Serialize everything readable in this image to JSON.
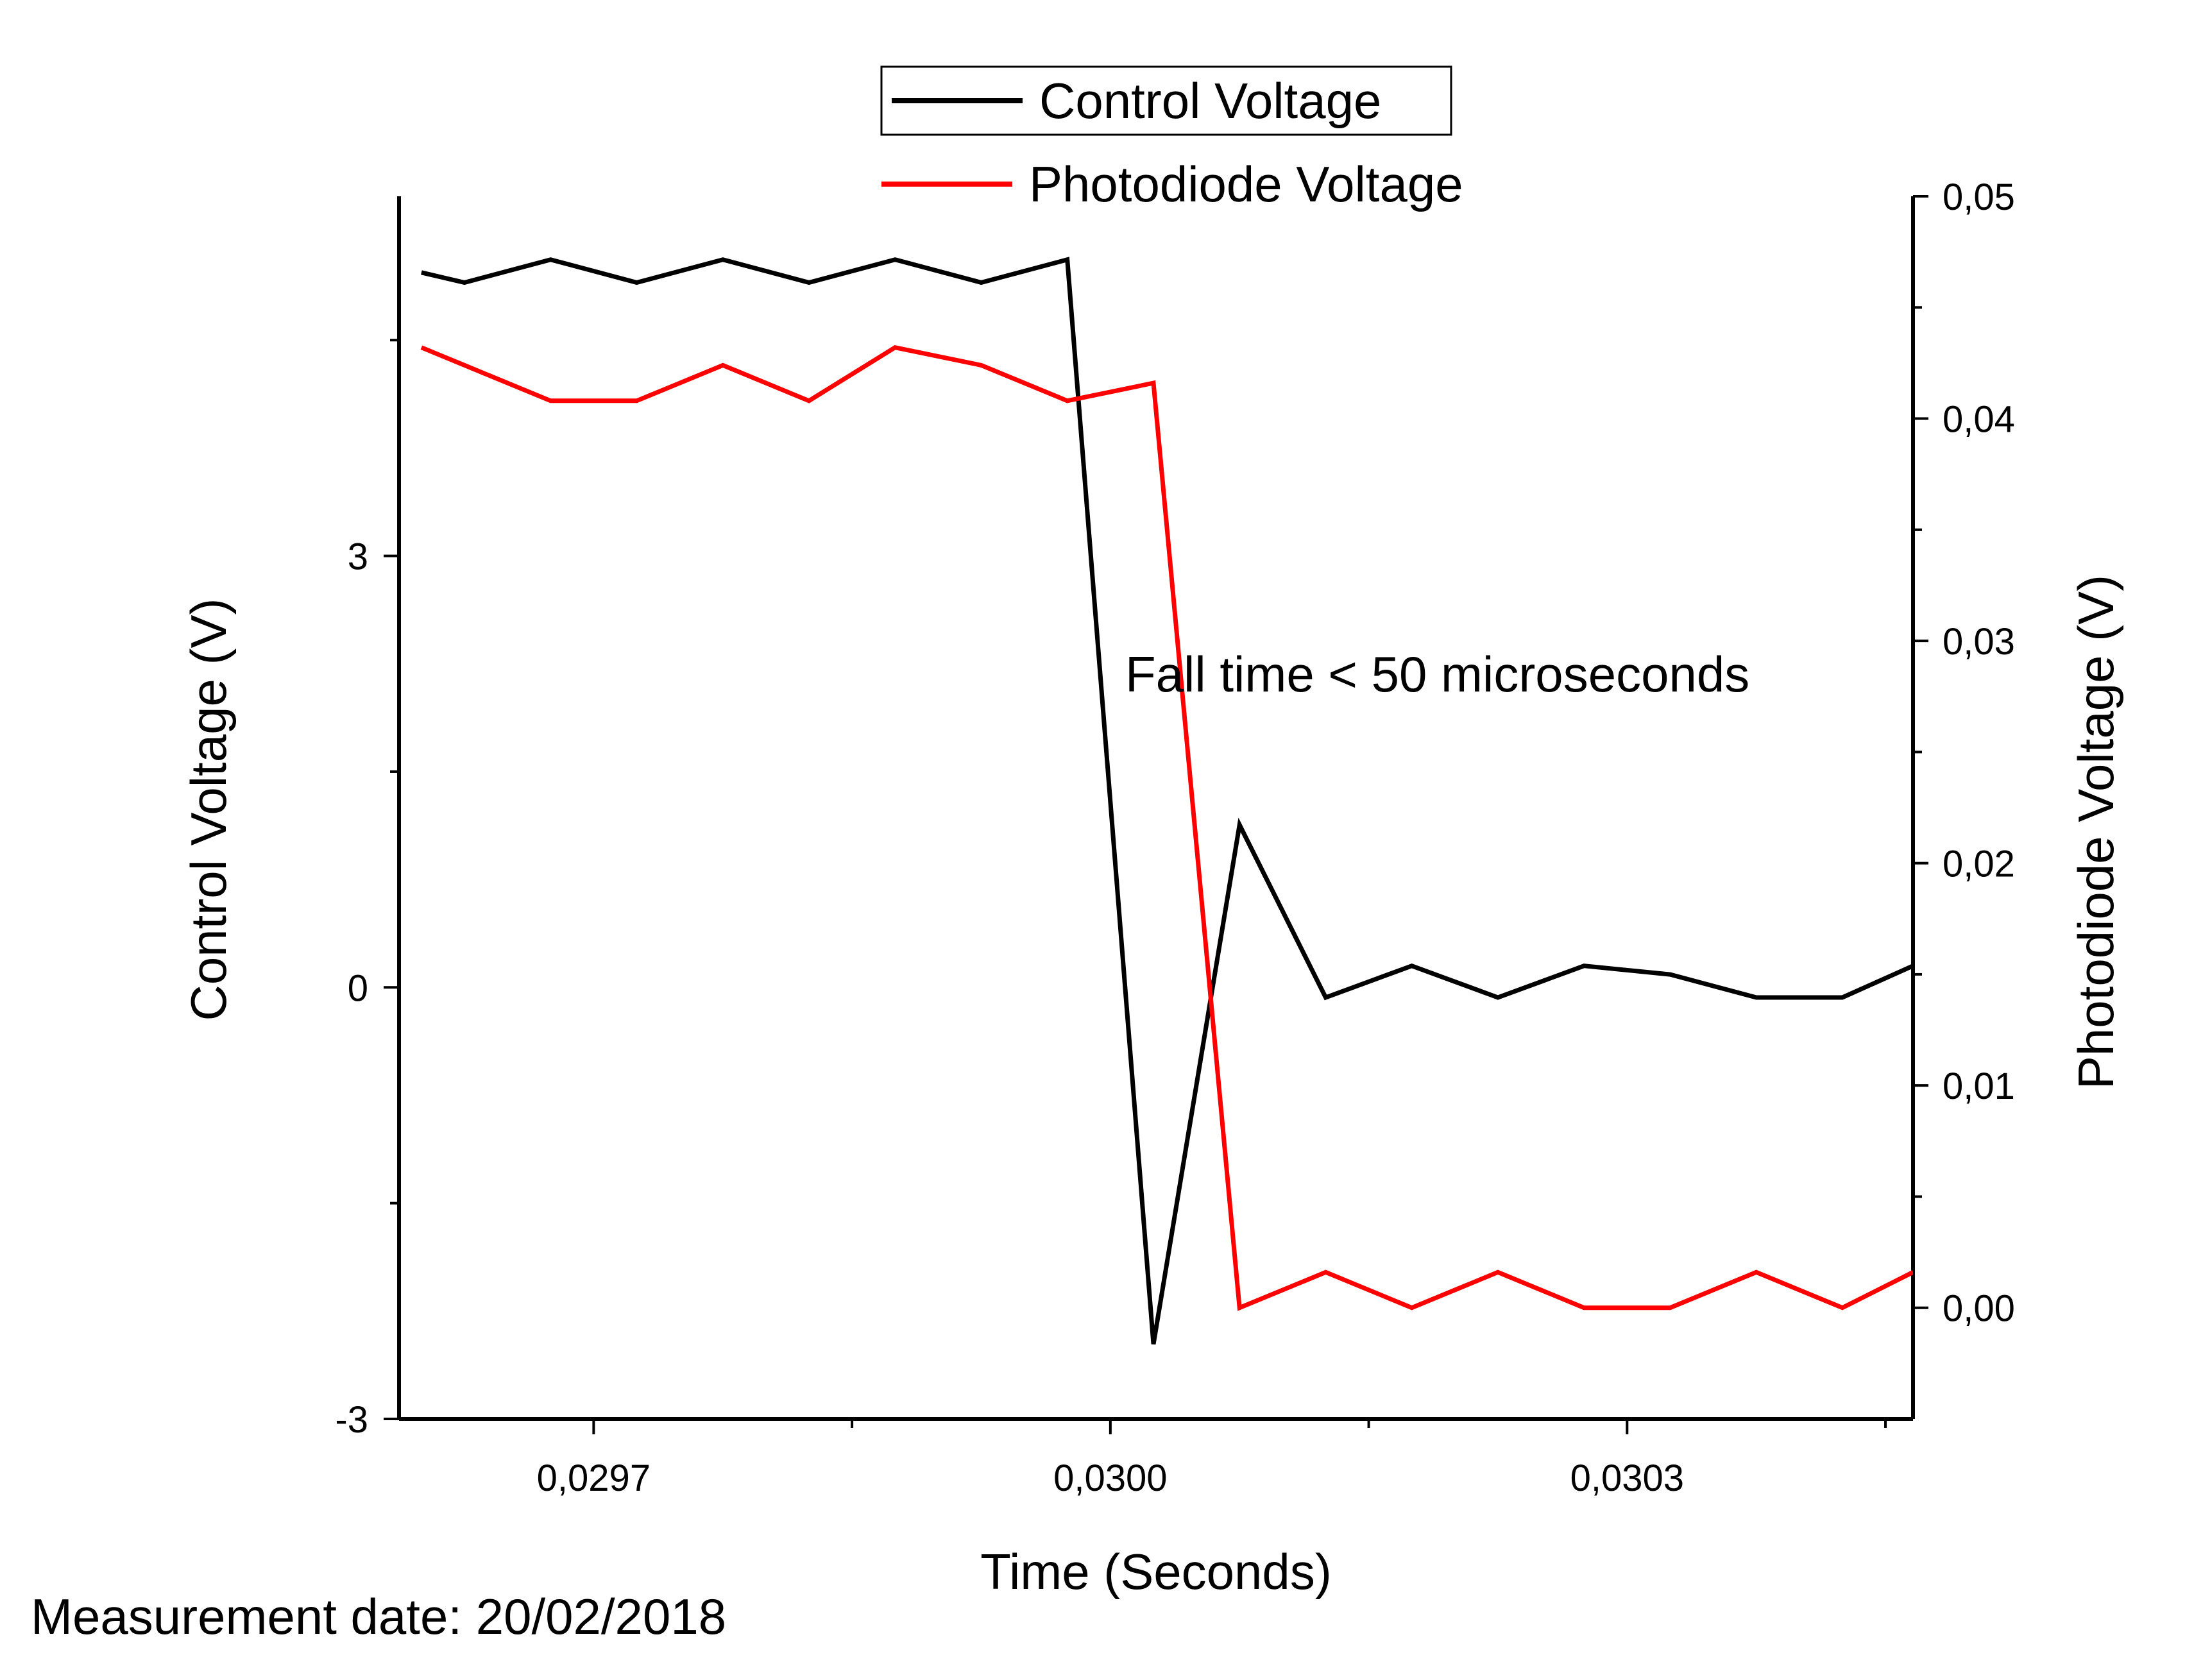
{
  "chart_data": {
    "type": "line",
    "xlabel": "Time (Seconds)",
    "ylabel": "Control Voltage (V)",
    "y2label": "Photodiode Voltage (V)",
    "xlim": [
      0.029587,
      0.030466
    ],
    "ylim": [
      -3,
      5.5
    ],
    "y2lim": [
      -0.005,
      0.05
    ],
    "x_ticks": [
      {
        "value": 0.0297,
        "label": "0,0297"
      },
      {
        "value": 0.03,
        "label": "0,0300"
      },
      {
        "value": 0.0303,
        "label": "0,0303"
      }
    ],
    "y_ticks": [
      {
        "value": -3,
        "label": "-3"
      },
      {
        "value": 0,
        "label": "0"
      },
      {
        "value": 3,
        "label": "3"
      }
    ],
    "y2_ticks": [
      {
        "value": 0.0,
        "label": "0,00"
      },
      {
        "value": 0.01,
        "label": "0,01"
      },
      {
        "value": 0.02,
        "label": "0,02"
      },
      {
        "value": 0.03,
        "label": "0,03"
      },
      {
        "value": 0.04,
        "label": "0,04"
      },
      {
        "value": 0.05,
        "label": "0,05"
      }
    ],
    "series": [
      {
        "name": "Control Voltage",
        "color": "#000000",
        "axis": "left",
        "x": [
          0.0296,
          0.029625,
          0.029675,
          0.029725,
          0.029775,
          0.029825,
          0.029875,
          0.029925,
          0.029975,
          0.030025,
          0.030075,
          0.030125,
          0.030175,
          0.030225,
          0.030275,
          0.030325,
          0.030375,
          0.030425,
          0.030466
        ],
        "y": [
          4.97,
          4.9,
          5.06,
          4.9,
          5.06,
          4.9,
          5.06,
          4.9,
          5.06,
          -2.48,
          1.13,
          -0.07,
          0.15,
          -0.07,
          0.15,
          0.09,
          -0.07,
          -0.07,
          0.15
        ]
      },
      {
        "name": "Photodiode Voltage",
        "color": "#ff0000",
        "axis": "right",
        "x": [
          0.0296,
          0.029625,
          0.029675,
          0.029725,
          0.029775,
          0.029825,
          0.029875,
          0.029925,
          0.029975,
          0.030025,
          0.030075,
          0.030125,
          0.030175,
          0.030225,
          0.030275,
          0.030325,
          0.030375,
          0.030425,
          0.030466
        ],
        "y": [
          0.0432,
          0.0424,
          0.0408,
          0.0408,
          0.0424,
          0.0408,
          0.0432,
          0.0424,
          0.0408,
          0.0416,
          0.0,
          0.0016,
          0.0,
          0.0016,
          0.0,
          0.0,
          0.0016,
          0.0,
          0.0016
        ]
      }
    ],
    "legend": {
      "placement": "top-center",
      "entries": [
        "Control Voltage",
        "Photodiode Voltage"
      ]
    },
    "annotation": "Fall time < 50 microseconds",
    "grid": false
  },
  "footnote": "Measurement date: 20/02/2018"
}
